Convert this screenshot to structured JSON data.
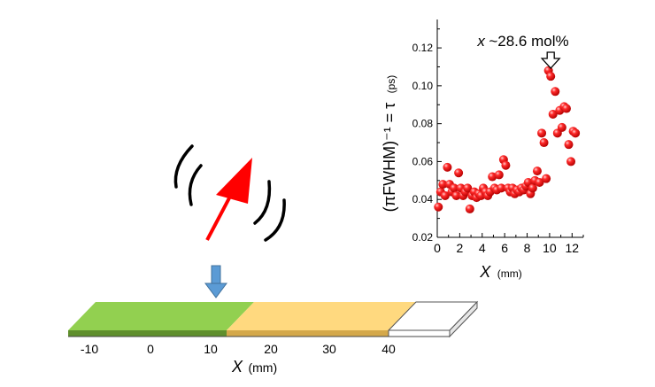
{
  "sample_bar": {
    "ticks": [
      "-10",
      "0",
      "10",
      "20",
      "30",
      "40"
    ],
    "axis_label_var": "X",
    "axis_label_unit": "(mm)",
    "colors": {
      "green": "#92d050",
      "yellow": "#ffd97f",
      "white": "#ffffff"
    }
  },
  "probe": {
    "arrow_color": "#ff0000",
    "beam_color": "#5b9bd5"
  },
  "chart_data": {
    "type": "scatter",
    "title": "",
    "xlabel_var": "X",
    "xlabel_unit": "(mm)",
    "ylabel_text": "(πFWHM)⁻¹ = τ",
    "ylabel_unit": "(ps)",
    "xlim": [
      0,
      13
    ],
    "ylim": [
      0.02,
      0.135
    ],
    "xticks": [
      0,
      2,
      4,
      6,
      8,
      10,
      12
    ],
    "yticks": [
      0.02,
      0.04,
      0.06,
      0.08,
      0.1,
      0.12
    ],
    "ytick_labels": [
      "0.02",
      "0.04",
      "0.06",
      "0.08",
      "0.10",
      "0.12"
    ],
    "annotation": {
      "text_var": "x",
      "text_rest": "~28.6 mol%",
      "x": 10.1
    },
    "marker_color": "#ff0000",
    "series": [
      {
        "points": [
          [
            0.1,
            0.036
          ],
          [
            0.3,
            0.044
          ],
          [
            0.5,
            0.048
          ],
          [
            0.7,
            0.042
          ],
          [
            0.9,
            0.057
          ],
          [
            1.1,
            0.048
          ],
          [
            1.3,
            0.044
          ],
          [
            1.5,
            0.046
          ],
          [
            1.7,
            0.042
          ],
          [
            1.9,
            0.054
          ],
          [
            2.1,
            0.046
          ],
          [
            2.3,
            0.042
          ],
          [
            2.5,
            0.044
          ],
          [
            2.7,
            0.046
          ],
          [
            2.9,
            0.035
          ],
          [
            3.1,
            0.042
          ],
          [
            3.3,
            0.044
          ],
          [
            3.5,
            0.041
          ],
          [
            3.7,
            0.043
          ],
          [
            3.9,
            0.042
          ],
          [
            4.1,
            0.046
          ],
          [
            4.3,
            0.044
          ],
          [
            4.5,
            0.042
          ],
          [
            4.7,
            0.044
          ],
          [
            4.9,
            0.052
          ],
          [
            5.1,
            0.046
          ],
          [
            5.3,
            0.045
          ],
          [
            5.5,
            0.053
          ],
          [
            5.7,
            0.046
          ],
          [
            5.9,
            0.061
          ],
          [
            6.1,
            0.058
          ],
          [
            6.3,
            0.046
          ],
          [
            6.5,
            0.044
          ],
          [
            6.7,
            0.046
          ],
          [
            6.9,
            0.043
          ],
          [
            7.1,
            0.045
          ],
          [
            7.3,
            0.044
          ],
          [
            7.5,
            0.046
          ],
          [
            7.7,
            0.045
          ],
          [
            7.9,
            0.047
          ],
          [
            8.1,
            0.049
          ],
          [
            8.3,
            0.043
          ],
          [
            8.5,
            0.046
          ],
          [
            8.7,
            0.05
          ],
          [
            8.9,
            0.055
          ],
          [
            9.1,
            0.049
          ],
          [
            9.3,
            0.075
          ],
          [
            9.5,
            0.07
          ],
          [
            9.7,
            0.051
          ],
          [
            9.9,
            0.108
          ],
          [
            10.1,
            0.105
          ],
          [
            10.3,
            0.085
          ],
          [
            10.5,
            0.097
          ],
          [
            10.7,
            0.075
          ],
          [
            10.9,
            0.087
          ],
          [
            11.1,
            0.078
          ],
          [
            11.3,
            0.089
          ],
          [
            11.5,
            0.088
          ],
          [
            11.7,
            0.069
          ],
          [
            11.9,
            0.06
          ],
          [
            12.1,
            0.076
          ],
          [
            12.3,
            0.075
          ]
        ]
      }
    ]
  }
}
